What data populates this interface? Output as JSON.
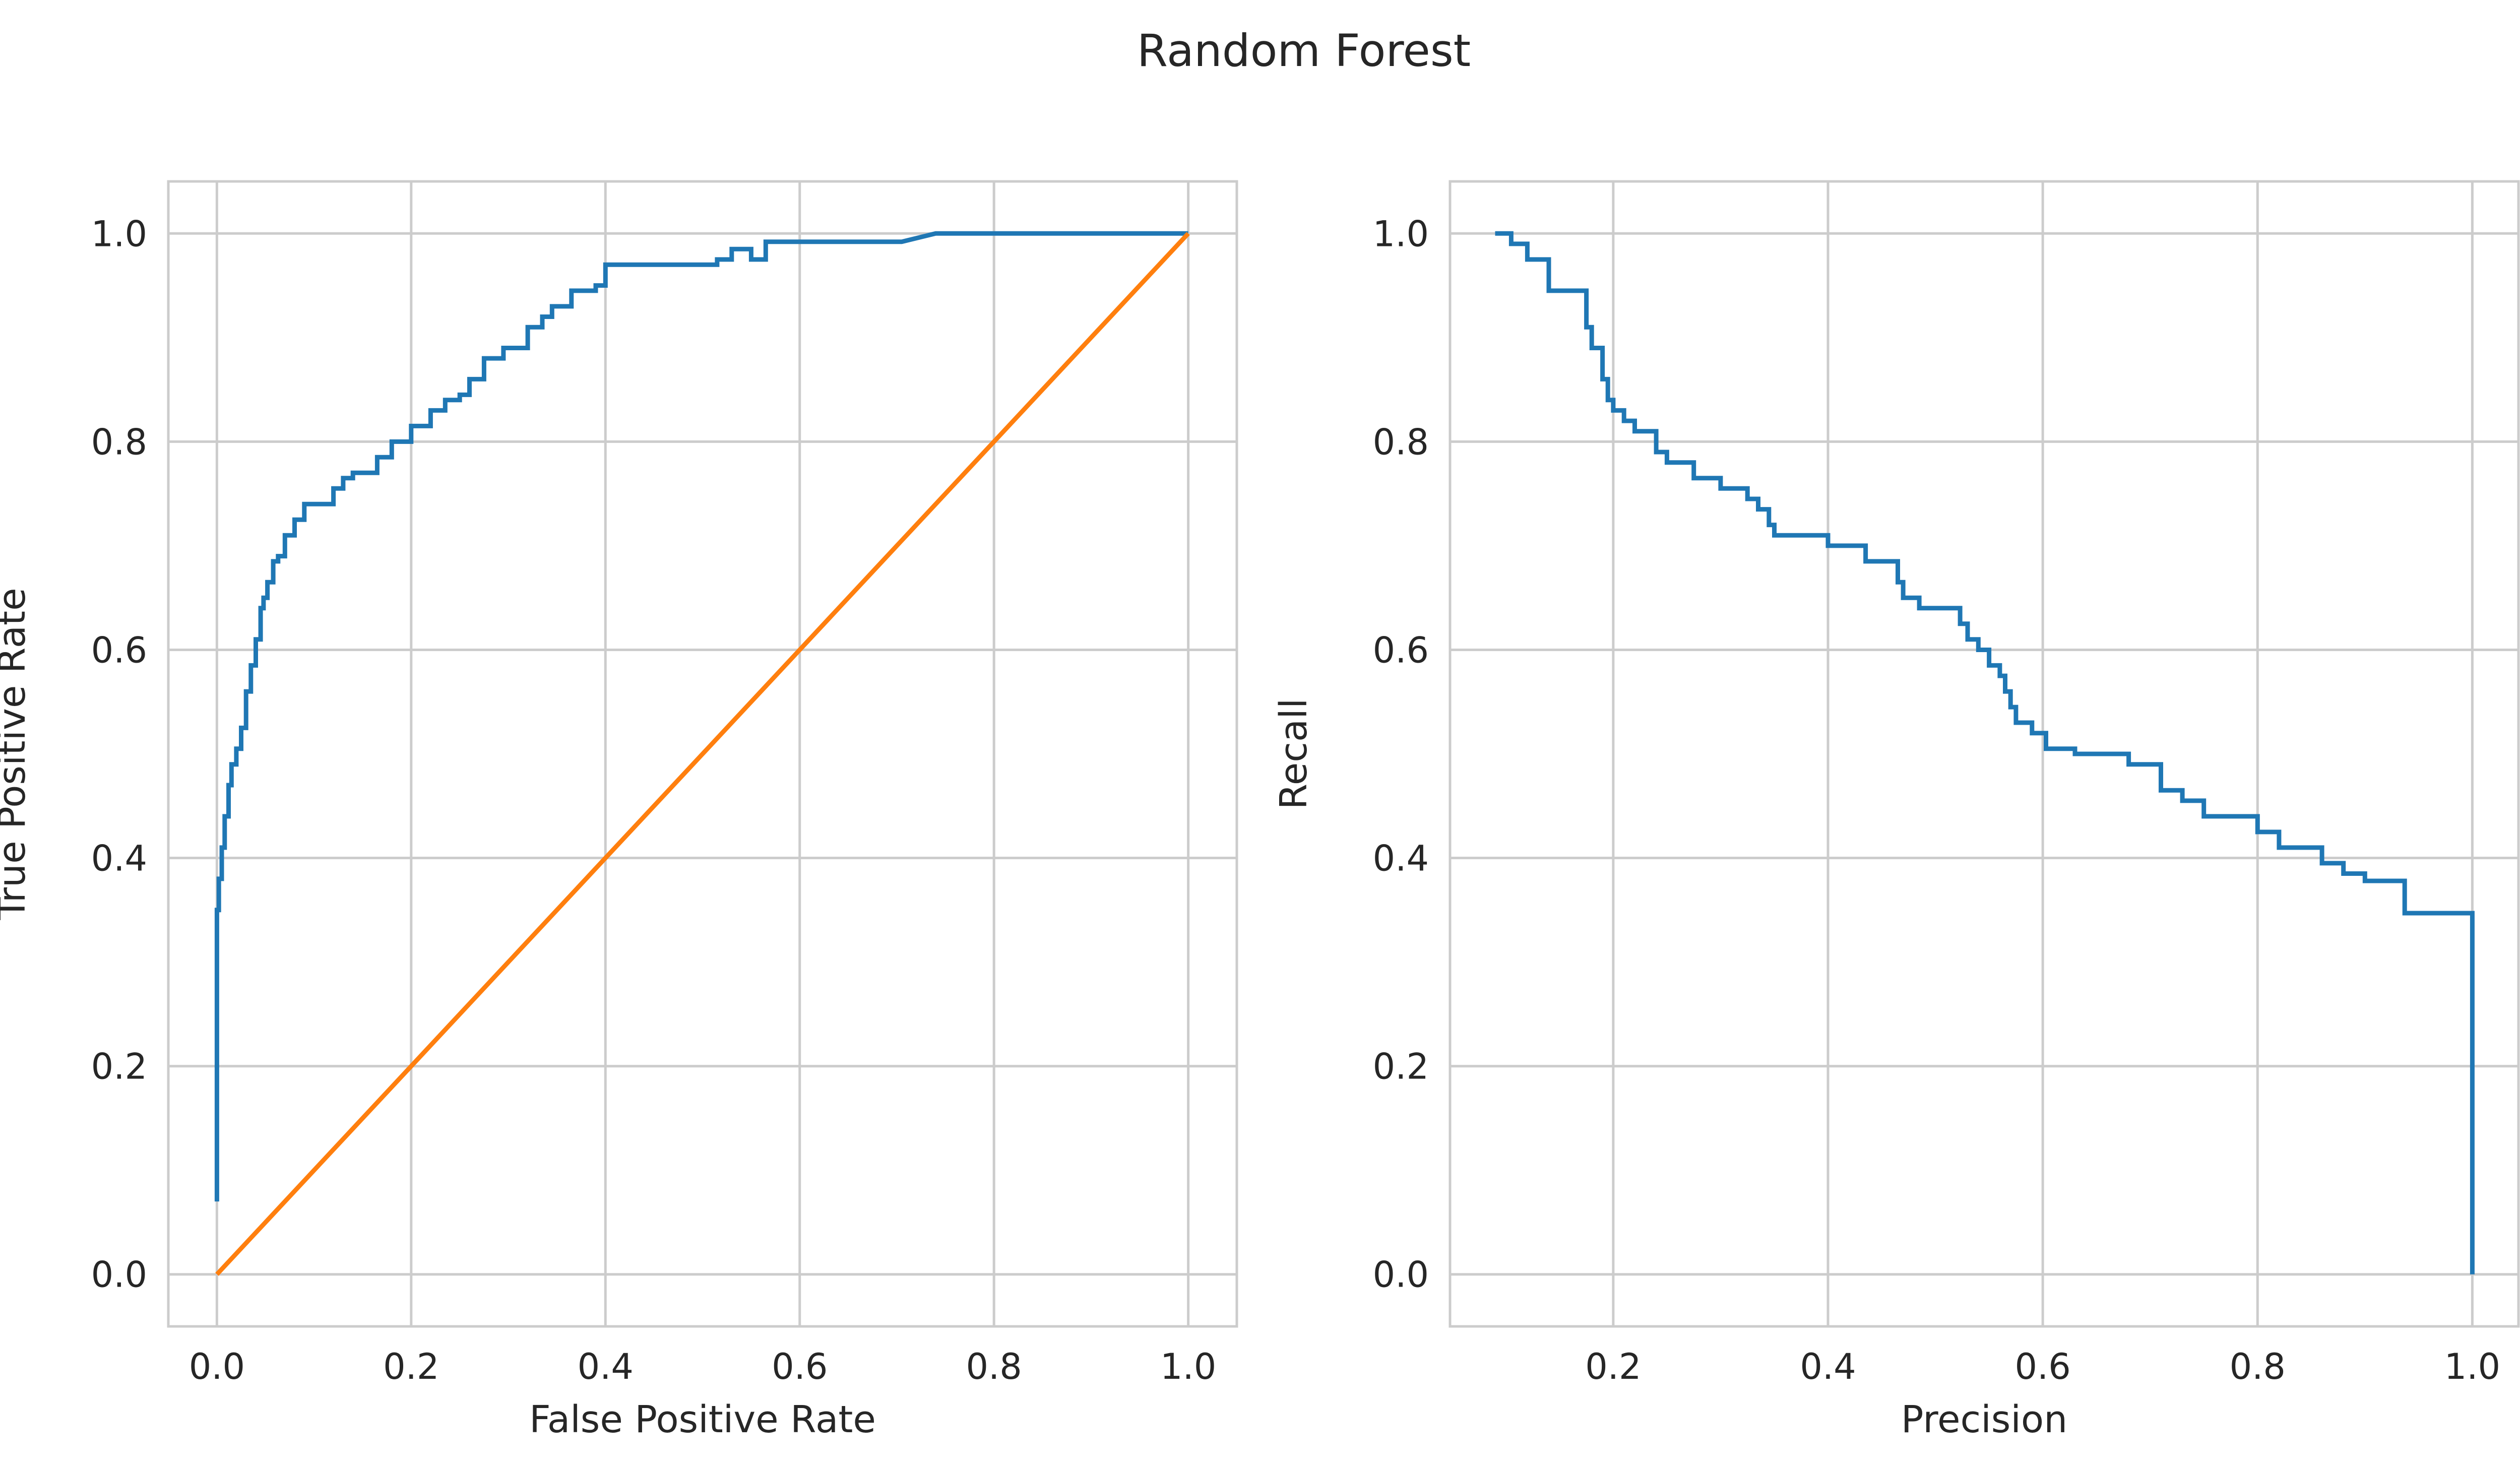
{
  "figure": {
    "title": "Random Forest"
  },
  "colors": {
    "series1": "#1f77b4",
    "series2": "#ff7f0e",
    "grid": "#cccccc",
    "text": "#262626"
  },
  "chart_data": [
    {
      "type": "line",
      "xlabel": "False Positive Rate",
      "ylabel": "True Positive Rate",
      "xlim": [
        -0.05,
        1.05
      ],
      "ylim": [
        -0.05,
        1.05
      ],
      "xticks": [
        "0.0",
        "0.2",
        "0.4",
        "0.6",
        "0.8",
        "1.0"
      ],
      "yticks": [
        "0.0",
        "0.2",
        "0.4",
        "0.6",
        "0.8",
        "1.0"
      ],
      "grid": true,
      "series": [
        {
          "color": "#1f77b4",
          "x": [
            0.0,
            0.0,
            0.0,
            0.0,
            0.002,
            0.002,
            0.005,
            0.005,
            0.008,
            0.008,
            0.012,
            0.012,
            0.015,
            0.015,
            0.02,
            0.02,
            0.025,
            0.025,
            0.03,
            0.03,
            0.035,
            0.035,
            0.04,
            0.04,
            0.045,
            0.045,
            0.048,
            0.048,
            0.052,
            0.052,
            0.058,
            0.058,
            0.063,
            0.063,
            0.07,
            0.07,
            0.08,
            0.08,
            0.09,
            0.09,
            0.12,
            0.12,
            0.13,
            0.13,
            0.14,
            0.14,
            0.165,
            0.165,
            0.18,
            0.18,
            0.2,
            0.2,
            0.22,
            0.22,
            0.235,
            0.235,
            0.25,
            0.25,
            0.26,
            0.26,
            0.275,
            0.275,
            0.295,
            0.295,
            0.32,
            0.32,
            0.335,
            0.335,
            0.345,
            0.345,
            0.365,
            0.365,
            0.39,
            0.39,
            0.4,
            0.4,
            0.515,
            0.515,
            0.53,
            0.53,
            0.55,
            0.55,
            0.565,
            0.565,
            0.705,
            0.74,
            0.825,
            0.9,
            1.0
          ],
          "y": [
            0.07,
            0.2,
            0.34,
            0.35,
            0.35,
            0.38,
            0.38,
            0.41,
            0.41,
            0.44,
            0.44,
            0.47,
            0.47,
            0.49,
            0.49,
            0.505,
            0.505,
            0.525,
            0.525,
            0.56,
            0.56,
            0.585,
            0.585,
            0.61,
            0.61,
            0.64,
            0.64,
            0.65,
            0.65,
            0.665,
            0.665,
            0.685,
            0.685,
            0.69,
            0.69,
            0.71,
            0.71,
            0.725,
            0.725,
            0.74,
            0.74,
            0.755,
            0.755,
            0.765,
            0.765,
            0.77,
            0.77,
            0.785,
            0.785,
            0.8,
            0.8,
            0.815,
            0.815,
            0.83,
            0.83,
            0.84,
            0.84,
            0.845,
            0.845,
            0.86,
            0.86,
            0.88,
            0.88,
            0.89,
            0.89,
            0.91,
            0.91,
            0.92,
            0.92,
            0.93,
            0.93,
            0.945,
            0.945,
            0.95,
            0.95,
            0.97,
            0.97,
            0.975,
            0.975,
            0.985,
            0.985,
            0.975,
            0.975,
            0.992,
            0.992,
            1.0,
            1.0,
            1.0,
            1.0
          ]
        },
        {
          "color": "#ff7f0e",
          "x": [
            0.0,
            1.0
          ],
          "y": [
            0.0,
            1.0
          ]
        }
      ]
    },
    {
      "type": "line",
      "xlabel": "Precision",
      "ylabel": "Recall",
      "xlim": [
        0.048,
        1.043
      ],
      "ylim": [
        -0.05,
        1.05
      ],
      "xticks": [
        "0.2",
        "0.4",
        "0.6",
        "0.8",
        "1.0"
      ],
      "yticks": [
        "0.0",
        "0.2",
        "0.4",
        "0.6",
        "0.8",
        "1.0"
      ],
      "grid": true,
      "series": [
        {
          "color": "#1f77b4",
          "x": [
            1.0,
            1.0,
            0.937,
            0.937,
            0.93,
            0.93,
            0.9,
            0.9,
            0.88,
            0.88,
            0.86,
            0.86,
            0.82,
            0.82,
            0.8,
            0.8,
            0.75,
            0.75,
            0.73,
            0.73,
            0.71,
            0.71,
            0.68,
            0.68,
            0.65,
            0.65,
            0.63,
            0.63,
            0.603,
            0.603,
            0.59,
            0.59,
            0.575,
            0.575,
            0.57,
            0.57,
            0.565,
            0.565,
            0.56,
            0.56,
            0.55,
            0.55,
            0.54,
            0.54,
            0.53,
            0.53,
            0.523,
            0.523,
            0.485,
            0.485,
            0.47,
            0.47,
            0.465,
            0.465,
            0.435,
            0.435,
            0.4,
            0.4,
            0.35,
            0.35,
            0.345,
            0.345,
            0.335,
            0.335,
            0.325,
            0.325,
            0.3,
            0.3,
            0.275,
            0.275,
            0.25,
            0.25,
            0.24,
            0.24,
            0.22,
            0.22,
            0.21,
            0.21,
            0.2,
            0.2,
            0.195,
            0.195,
            0.19,
            0.19,
            0.18,
            0.18,
            0.175,
            0.175,
            0.14,
            0.14,
            0.12,
            0.12,
            0.105,
            0.105,
            0.09
          ],
          "y": [
            0.0,
            0.347,
            0.347,
            0.378,
            0.378,
            0.378,
            0.378,
            0.385,
            0.385,
            0.395,
            0.395,
            0.41,
            0.41,
            0.425,
            0.425,
            0.44,
            0.44,
            0.455,
            0.455,
            0.465,
            0.465,
            0.49,
            0.49,
            0.5,
            0.5,
            0.5,
            0.5,
            0.505,
            0.505,
            0.52,
            0.52,
            0.53,
            0.53,
            0.545,
            0.545,
            0.56,
            0.56,
            0.575,
            0.575,
            0.585,
            0.585,
            0.6,
            0.6,
            0.61,
            0.61,
            0.625,
            0.625,
            0.64,
            0.64,
            0.65,
            0.65,
            0.665,
            0.665,
            0.685,
            0.685,
            0.7,
            0.7,
            0.71,
            0.71,
            0.72,
            0.72,
            0.735,
            0.735,
            0.745,
            0.745,
            0.755,
            0.755,
            0.765,
            0.765,
            0.78,
            0.78,
            0.79,
            0.79,
            0.81,
            0.81,
            0.82,
            0.82,
            0.83,
            0.83,
            0.84,
            0.84,
            0.86,
            0.86,
            0.89,
            0.89,
            0.91,
            0.91,
            0.945,
            0.945,
            0.975,
            0.975,
            0.99,
            0.99,
            1.0,
            1.0
          ]
        }
      ]
    }
  ]
}
